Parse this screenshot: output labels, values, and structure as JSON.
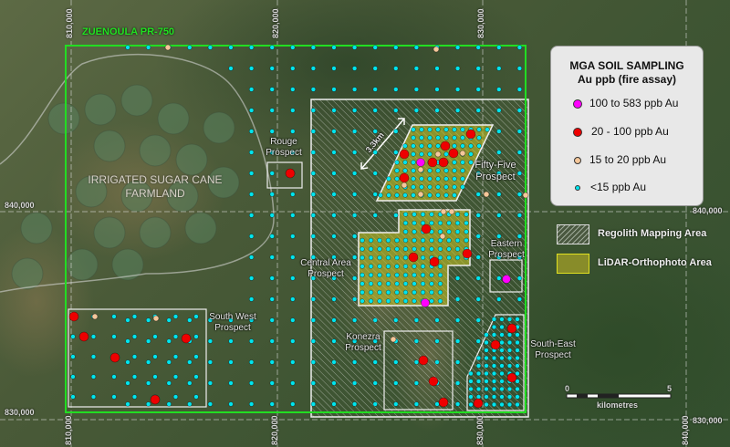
{
  "tenement": {
    "name": "ZUENOULA PR-750",
    "color": "#22dd22"
  },
  "grid_labels": {
    "eastings": [
      "810,000",
      "820,000",
      "830,000",
      "840,000"
    ],
    "northings": [
      "840,000",
      "830,000"
    ]
  },
  "farmland_label": "IRRIGATED SUGAR CANE FARMLAND",
  "prospects": [
    {
      "name": "Rouge Prospect"
    },
    {
      "name": "Fifty-Five Prospect"
    },
    {
      "name": "Central Area Prospect"
    },
    {
      "name": "Eastern Prospect"
    },
    {
      "name": "South West Prospect"
    },
    {
      "name": "Konezra Prospect"
    },
    {
      "name": "South-East Prospect"
    }
  ],
  "dimension_label": "3.3km",
  "legend": {
    "title": "MGA SOIL SAMPLING",
    "subtitle": "Au ppb (fire assay)",
    "classes": [
      {
        "label": "100 to 583 ppb Au",
        "color": "#ff00ff"
      },
      {
        "label": "20 - 100 ppb Au",
        "color": "#ee0000"
      },
      {
        "label": "15 to 20 ppb Au",
        "color": "#f5c79a"
      },
      {
        "label": "<15 ppb Au",
        "color": "#00e5ee"
      }
    ],
    "areas": [
      {
        "label": "Regolith Mapping Area",
        "color": "#ffffff"
      },
      {
        "label": "LiDAR-Orthophoto Area",
        "color": "#e0e020"
      }
    ]
  },
  "scale_bar": {
    "start": "0",
    "end": "5",
    "unit": "kilometres"
  }
}
